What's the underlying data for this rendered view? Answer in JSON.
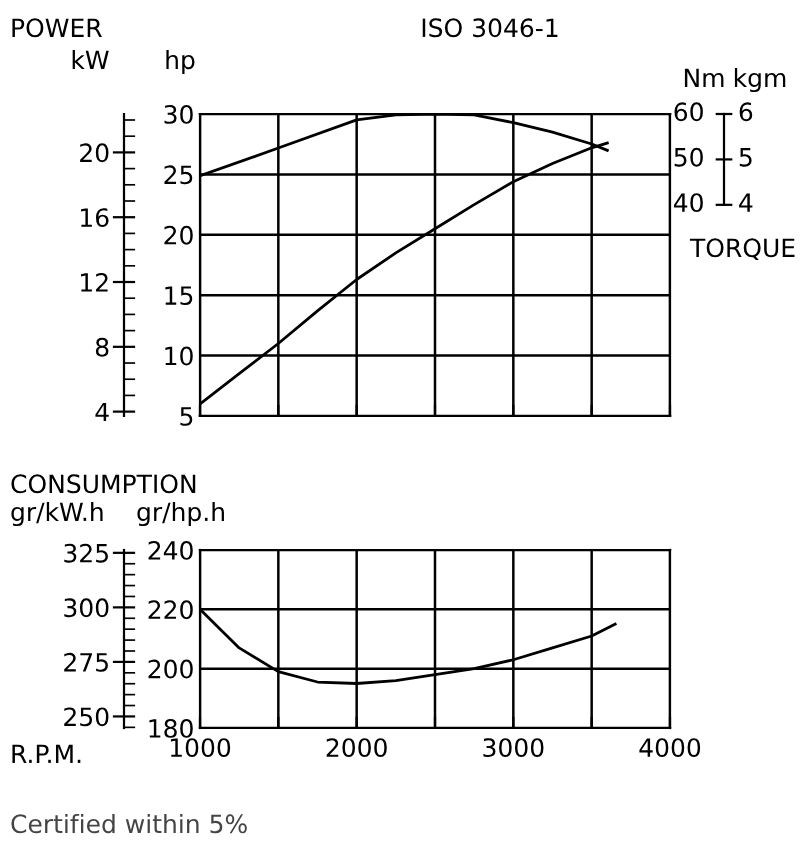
{
  "chart_data": [
    {
      "type": "line",
      "title": "ISO 3046-1",
      "ylabel": "hp",
      "y2label": "kW",
      "y3label": "Nm",
      "annotations": [
        "POWER",
        "TORQUE",
        "kgm",
        "4",
        "5",
        "6"
      ],
      "xlim": [
        1000,
        4000
      ],
      "xticks": [
        1000,
        {
          "value": 1500,
          "label": null
        },
        {
          "value": 2000,
          "label": null
        },
        {
          "value": 2500,
          "label": null
        },
        {
          "value": 3000,
          "label": null
        },
        {
          "value": 3500,
          "label": null
        },
        {
          "value": 4000,
          "label": null
        }
      ],
      "ylim": [
        5,
        30
      ],
      "yticks": [
        5,
        10,
        15,
        20,
        25,
        30
      ],
      "y2lim": [
        3.73,
        22.37
      ],
      "y2ticks": [
        4,
        8,
        12,
        16,
        20
      ],
      "y3lim": [
        -6.5,
        60
      ],
      "y3ticks": [
        40,
        50,
        60
      ],
      "tick_labels": "y",
      "grid": true,
      "legend": false,
      "marker": "none",
      "line_style": "solid",
      "series": [
        {
          "color": "#000000",
          "axis": "y",
          "x": [
            1000,
            1250,
            1500,
            1750,
            2000,
            2250,
            2500,
            2750,
            3000,
            3250,
            3500,
            3600
          ],
          "values": [
            6.0,
            8.5,
            11.0,
            13.7,
            16.3,
            18.5,
            20.5,
            22.5,
            24.4,
            25.9,
            27.2,
            27.6
          ]
        },
        {
          "color": "#000000",
          "axis": "y3",
          "x": [
            1000,
            1500,
            2000,
            2250,
            2500,
            2750,
            3000,
            3250,
            3500,
            3600
          ],
          "values": [
            46.4,
            52.5,
            58.7,
            59.8,
            60.0,
            59.8,
            58.1,
            56.0,
            53.4,
            52.0
          ]
        }
      ]
    },
    {
      "type": "line",
      "title": "CONSUMPTION",
      "xlabel": "R.P.M.",
      "ylabel": "gr/hp.h",
      "y2label": "gr/kW.h",
      "annotations": [
        "Certified within 5%"
      ],
      "xlim": [
        1000,
        4000
      ],
      "xticks": [
        1000,
        {
          "value": 1500,
          "label": null
        },
        2000,
        {
          "value": 2500,
          "label": null
        },
        3000,
        {
          "value": 3500,
          "label": null
        },
        4000
      ],
      "ylim": [
        180,
        240
      ],
      "yticks": [
        180,
        200,
        220,
        240
      ],
      "y2lim": [
        244.7,
        326.3
      ],
      "y2ticks": [
        250,
        275,
        300,
        325
      ],
      "grid": true,
      "legend": false,
      "marker": "none",
      "line_style": "solid",
      "series": [
        {
          "color": "#000000",
          "axis": "y",
          "x": [
            1000,
            1250,
            1500,
            1750,
            2000,
            2250,
            2500,
            2750,
            3000,
            3250,
            3500,
            3650
          ],
          "values": [
            220,
            207,
            199,
            195.5,
            195,
            196,
            198,
            200,
            203,
            207,
            211,
            215
          ]
        }
      ]
    }
  ]
}
